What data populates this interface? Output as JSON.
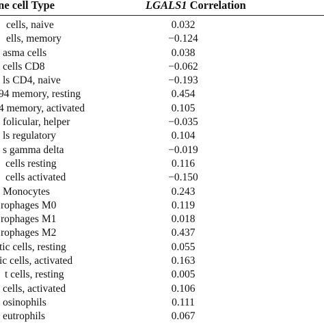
{
  "table": {
    "header": {
      "cell_type_label": "une cell Type",
      "gene_label": "LGALS1",
      "correlation_label": " Correlation"
    },
    "rows": [
      {
        "name": "cells, naive",
        "value": "0.032"
      },
      {
        "name": "ells, memory",
        "value": "−0.124"
      },
      {
        "name": "asma cells",
        "value": "0.038"
      },
      {
        "name": "cells CD8",
        "value": "−0.062"
      },
      {
        "name": "ls CD4, naive",
        "value": "−0.193"
      },
      {
        "name": "94 memory, resting",
        "value": "0.454"
      },
      {
        "name": "4 memory, activated",
        "value": "0.105"
      },
      {
        "name": "folicular, helper",
        "value": "−0.035"
      },
      {
        "name": "ls regulatory",
        "value": "0.104"
      },
      {
        "name": "s gamma delta",
        "value": "−0.019"
      },
      {
        "name": "cells resting",
        "value": "0.116"
      },
      {
        "name": "cells activated",
        "value": "−0.150"
      },
      {
        "name": "Monocytes",
        "value": "0.243"
      },
      {
        "name": "rophages M0",
        "value": "0.119"
      },
      {
        "name": "rophages M1",
        "value": "0.018"
      },
      {
        "name": "rophages M2",
        "value": "0.437"
      },
      {
        "name": "tic cells, resting",
        "value": "0.055"
      },
      {
        "name": "ic cells, activated",
        "value": "0.163"
      },
      {
        "name": "t cells, resting",
        "value": "0.005"
      },
      {
        "name": "cells, activated",
        "value": "0.106"
      },
      {
        "name": "osinophils",
        "value": "0.111"
      },
      {
        "name": "eutrophils",
        "value": "0.067"
      }
    ]
  }
}
